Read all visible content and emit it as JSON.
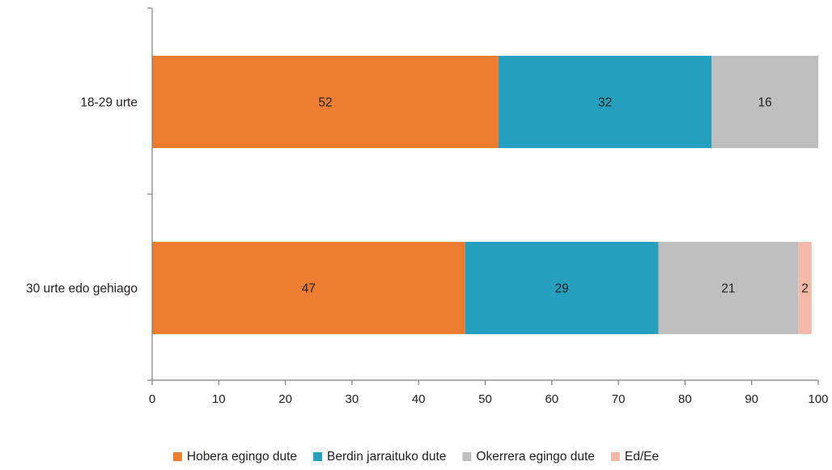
{
  "chart_data": {
    "type": "bar",
    "orientation": "horizontal",
    "stacked": true,
    "categories": [
      "18-29 urte",
      "30 urte edo gehiago"
    ],
    "series": [
      {
        "name": "Hobera egingo dute",
        "values": [
          52,
          47
        ],
        "color": "#ED7D31"
      },
      {
        "name": "Berdin jarraituko dute",
        "values": [
          32,
          29
        ],
        "color": "#27A0C0"
      },
      {
        "name": "Okerrera egingo dute",
        "values": [
          16,
          21
        ],
        "color": "#BFBFBF"
      },
      {
        "name": "Ed/Ee",
        "values": [
          0,
          2
        ],
        "color": "#F4B9A8"
      }
    ],
    "data_labels": [
      [
        "52",
        "32",
        "16",
        ""
      ],
      [
        "47",
        "29",
        "21",
        "2"
      ]
    ],
    "xlim": [
      0,
      100
    ],
    "x_ticks": [
      0,
      10,
      20,
      30,
      40,
      50,
      60,
      70,
      80,
      90,
      100
    ],
    "title": "",
    "xlabel": "",
    "ylabel": "",
    "grid": false,
    "legend_position": "bottom"
  }
}
